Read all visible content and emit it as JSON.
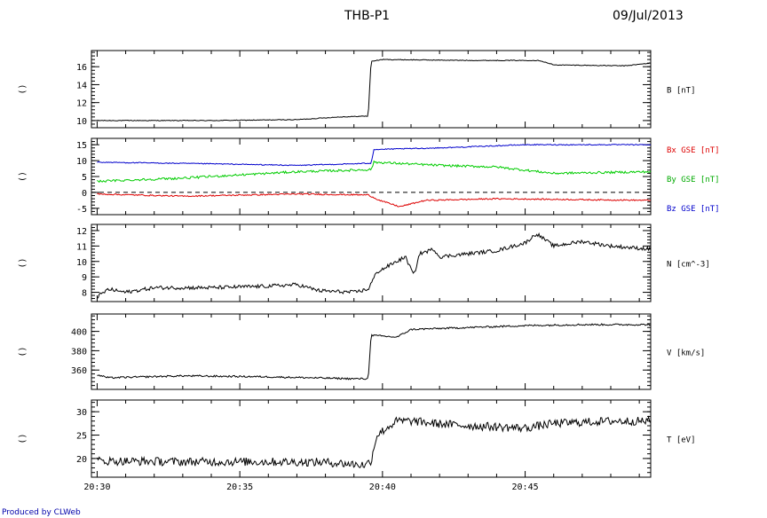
{
  "header": {
    "title": "THB-P1",
    "date": "09/Jul/2013"
  },
  "footer": {
    "credit": "Produced by CLWeb"
  },
  "chart_data": {
    "type": "line",
    "x_ticks": [
      "20:30",
      "20:35",
      "20:40",
      "20:45"
    ],
    "x_tick_minutes": [
      0,
      5,
      10,
      15
    ],
    "x_range_minutes": [
      -0.2,
      19.4
    ],
    "panels": [
      {
        "id": "b",
        "left_label": "()",
        "yticks": [
          10,
          12,
          14,
          16
        ],
        "ylim": [
          9.2,
          17.8
        ],
        "labels": [
          {
            "text": "B [nT]",
            "color": "#000000"
          }
        ],
        "series": [
          {
            "color": "#000000",
            "noise": 0.04,
            "points": [
              [
                0,
                10
              ],
              [
                4,
                10
              ],
              [
                7,
                10.1
              ],
              [
                8.5,
                10.4
              ],
              [
                9.5,
                10.5
              ],
              [
                9.6,
                16.6
              ],
              [
                10,
                16.8
              ],
              [
                13,
                16.7
              ],
              [
                15.5,
                16.7
              ],
              [
                16,
                16.2
              ],
              [
                18.5,
                16.1
              ],
              [
                19.4,
                16.4
              ]
            ]
          }
        ]
      },
      {
        "id": "bxyz",
        "left_label": "()",
        "yticks": [
          -5,
          0,
          5,
          10,
          15
        ],
        "ylim": [
          -7,
          17
        ],
        "zero_line": true,
        "labels": [
          {
            "text": "Bx GSE [nT]",
            "color": "#dd0000"
          },
          {
            "text": "By GSE [nT]",
            "color": "#00aa00"
          },
          {
            "text": "Bz GSE [nT]",
            "color": "#0000cc"
          }
        ],
        "series": [
          {
            "color": "#0000cc",
            "noise": 0.15,
            "points": [
              [
                0,
                9.5
              ],
              [
                4,
                9
              ],
              [
                7,
                8.5
              ],
              [
                9,
                9
              ],
              [
                9.6,
                9.2
              ],
              [
                9.7,
                13.5
              ],
              [
                12,
                14
              ],
              [
                15,
                15
              ],
              [
                19.4,
                15
              ]
            ]
          },
          {
            "color": "#00cc00",
            "noise": 0.35,
            "points": [
              [
                0,
                3.5
              ],
              [
                3,
                4.5
              ],
              [
                5,
                5.5
              ],
              [
                7,
                6.5
              ],
              [
                9,
                7
              ],
              [
                9.6,
                7.2
              ],
              [
                9.7,
                9.5
              ],
              [
                12,
                8.5
              ],
              [
                14,
                8
              ],
              [
                16,
                6
              ],
              [
                19.4,
                6.5
              ]
            ]
          },
          {
            "color": "#dd0000",
            "noise": 0.2,
            "points": [
              [
                0,
                -0.5
              ],
              [
                3,
                -1.2
              ],
              [
                7,
                -0.5
              ],
              [
                9.5,
                -0.8
              ],
              [
                9.9,
                -2.5
              ],
              [
                10.6,
                -4.5
              ],
              [
                11.5,
                -2.5
              ],
              [
                14,
                -2
              ],
              [
                19.4,
                -2.5
              ]
            ]
          }
        ]
      },
      {
        "id": "n",
        "left_label": "()",
        "yticks": [
          8,
          9,
          10,
          11,
          12
        ],
        "ylim": [
          7.4,
          12.4
        ],
        "labels": [
          {
            "text": "N [cm^-3]",
            "color": "#000000"
          }
        ],
        "series": [
          {
            "color": "#000000",
            "noise": 0.12,
            "points": [
              [
                0,
                7.7
              ],
              [
                0.4,
                8.2
              ],
              [
                1,
                8
              ],
              [
                2,
                8.3
              ],
              [
                4,
                8.3
              ],
              [
                6,
                8.4
              ],
              [
                7,
                8.5
              ],
              [
                7.8,
                8.1
              ],
              [
                9,
                8
              ],
              [
                9.5,
                8.2
              ],
              [
                9.8,
                9.3
              ],
              [
                10.3,
                9.8
              ],
              [
                10.8,
                10.3
              ],
              [
                11.1,
                9.1
              ],
              [
                11.3,
                10.5
              ],
              [
                11.8,
                10.8
              ],
              [
                12,
                10.3
              ],
              [
                14,
                10.7
              ],
              [
                15,
                11.2
              ],
              [
                15.4,
                11.8
              ],
              [
                16,
                11
              ],
              [
                17,
                11.3
              ],
              [
                18,
                11
              ],
              [
                19.4,
                10.8
              ]
            ]
          }
        ]
      },
      {
        "id": "v",
        "left_label": "()",
        "yticks": [
          360,
          380,
          400
        ],
        "ylim": [
          340,
          418
        ],
        "labels": [
          {
            "text": "V [km/s]",
            "color": "#000000"
          }
        ],
        "series": [
          {
            "color": "#000000",
            "noise": 0.9,
            "points": [
              [
                0,
                355
              ],
              [
                0.4,
                352
              ],
              [
                3,
                354
              ],
              [
                6,
                353
              ],
              [
                9,
                351
              ],
              [
                9.5,
                351
              ],
              [
                9.6,
                396
              ],
              [
                10.5,
                394
              ],
              [
                11,
                402
              ],
              [
                13,
                404
              ],
              [
                15,
                406
              ],
              [
                17,
                407
              ],
              [
                19.4,
                407
              ]
            ]
          }
        ]
      },
      {
        "id": "t",
        "left_label": "()",
        "yticks": [
          20,
          25,
          30
        ],
        "ylim": [
          16,
          32.5
        ],
        "labels": [
          {
            "text": "T [eV]",
            "color": "#000000"
          }
        ],
        "series": [
          {
            "color": "#000000",
            "noise": 0.9,
            "points": [
              [
                0,
                19.5
              ],
              [
                3,
                19.3
              ],
              [
                6,
                19.3
              ],
              [
                8,
                19.2
              ],
              [
                9.4,
                18.6
              ],
              [
                9.6,
                19.5
              ],
              [
                9.8,
                25
              ],
              [
                10.5,
                28
              ],
              [
                11,
                28
              ],
              [
                11.8,
                27.5
              ],
              [
                13,
                27
              ],
              [
                15,
                26.5
              ],
              [
                16,
                27.5
              ],
              [
                18,
                28
              ],
              [
                19.4,
                28
              ]
            ]
          }
        ]
      }
    ]
  }
}
